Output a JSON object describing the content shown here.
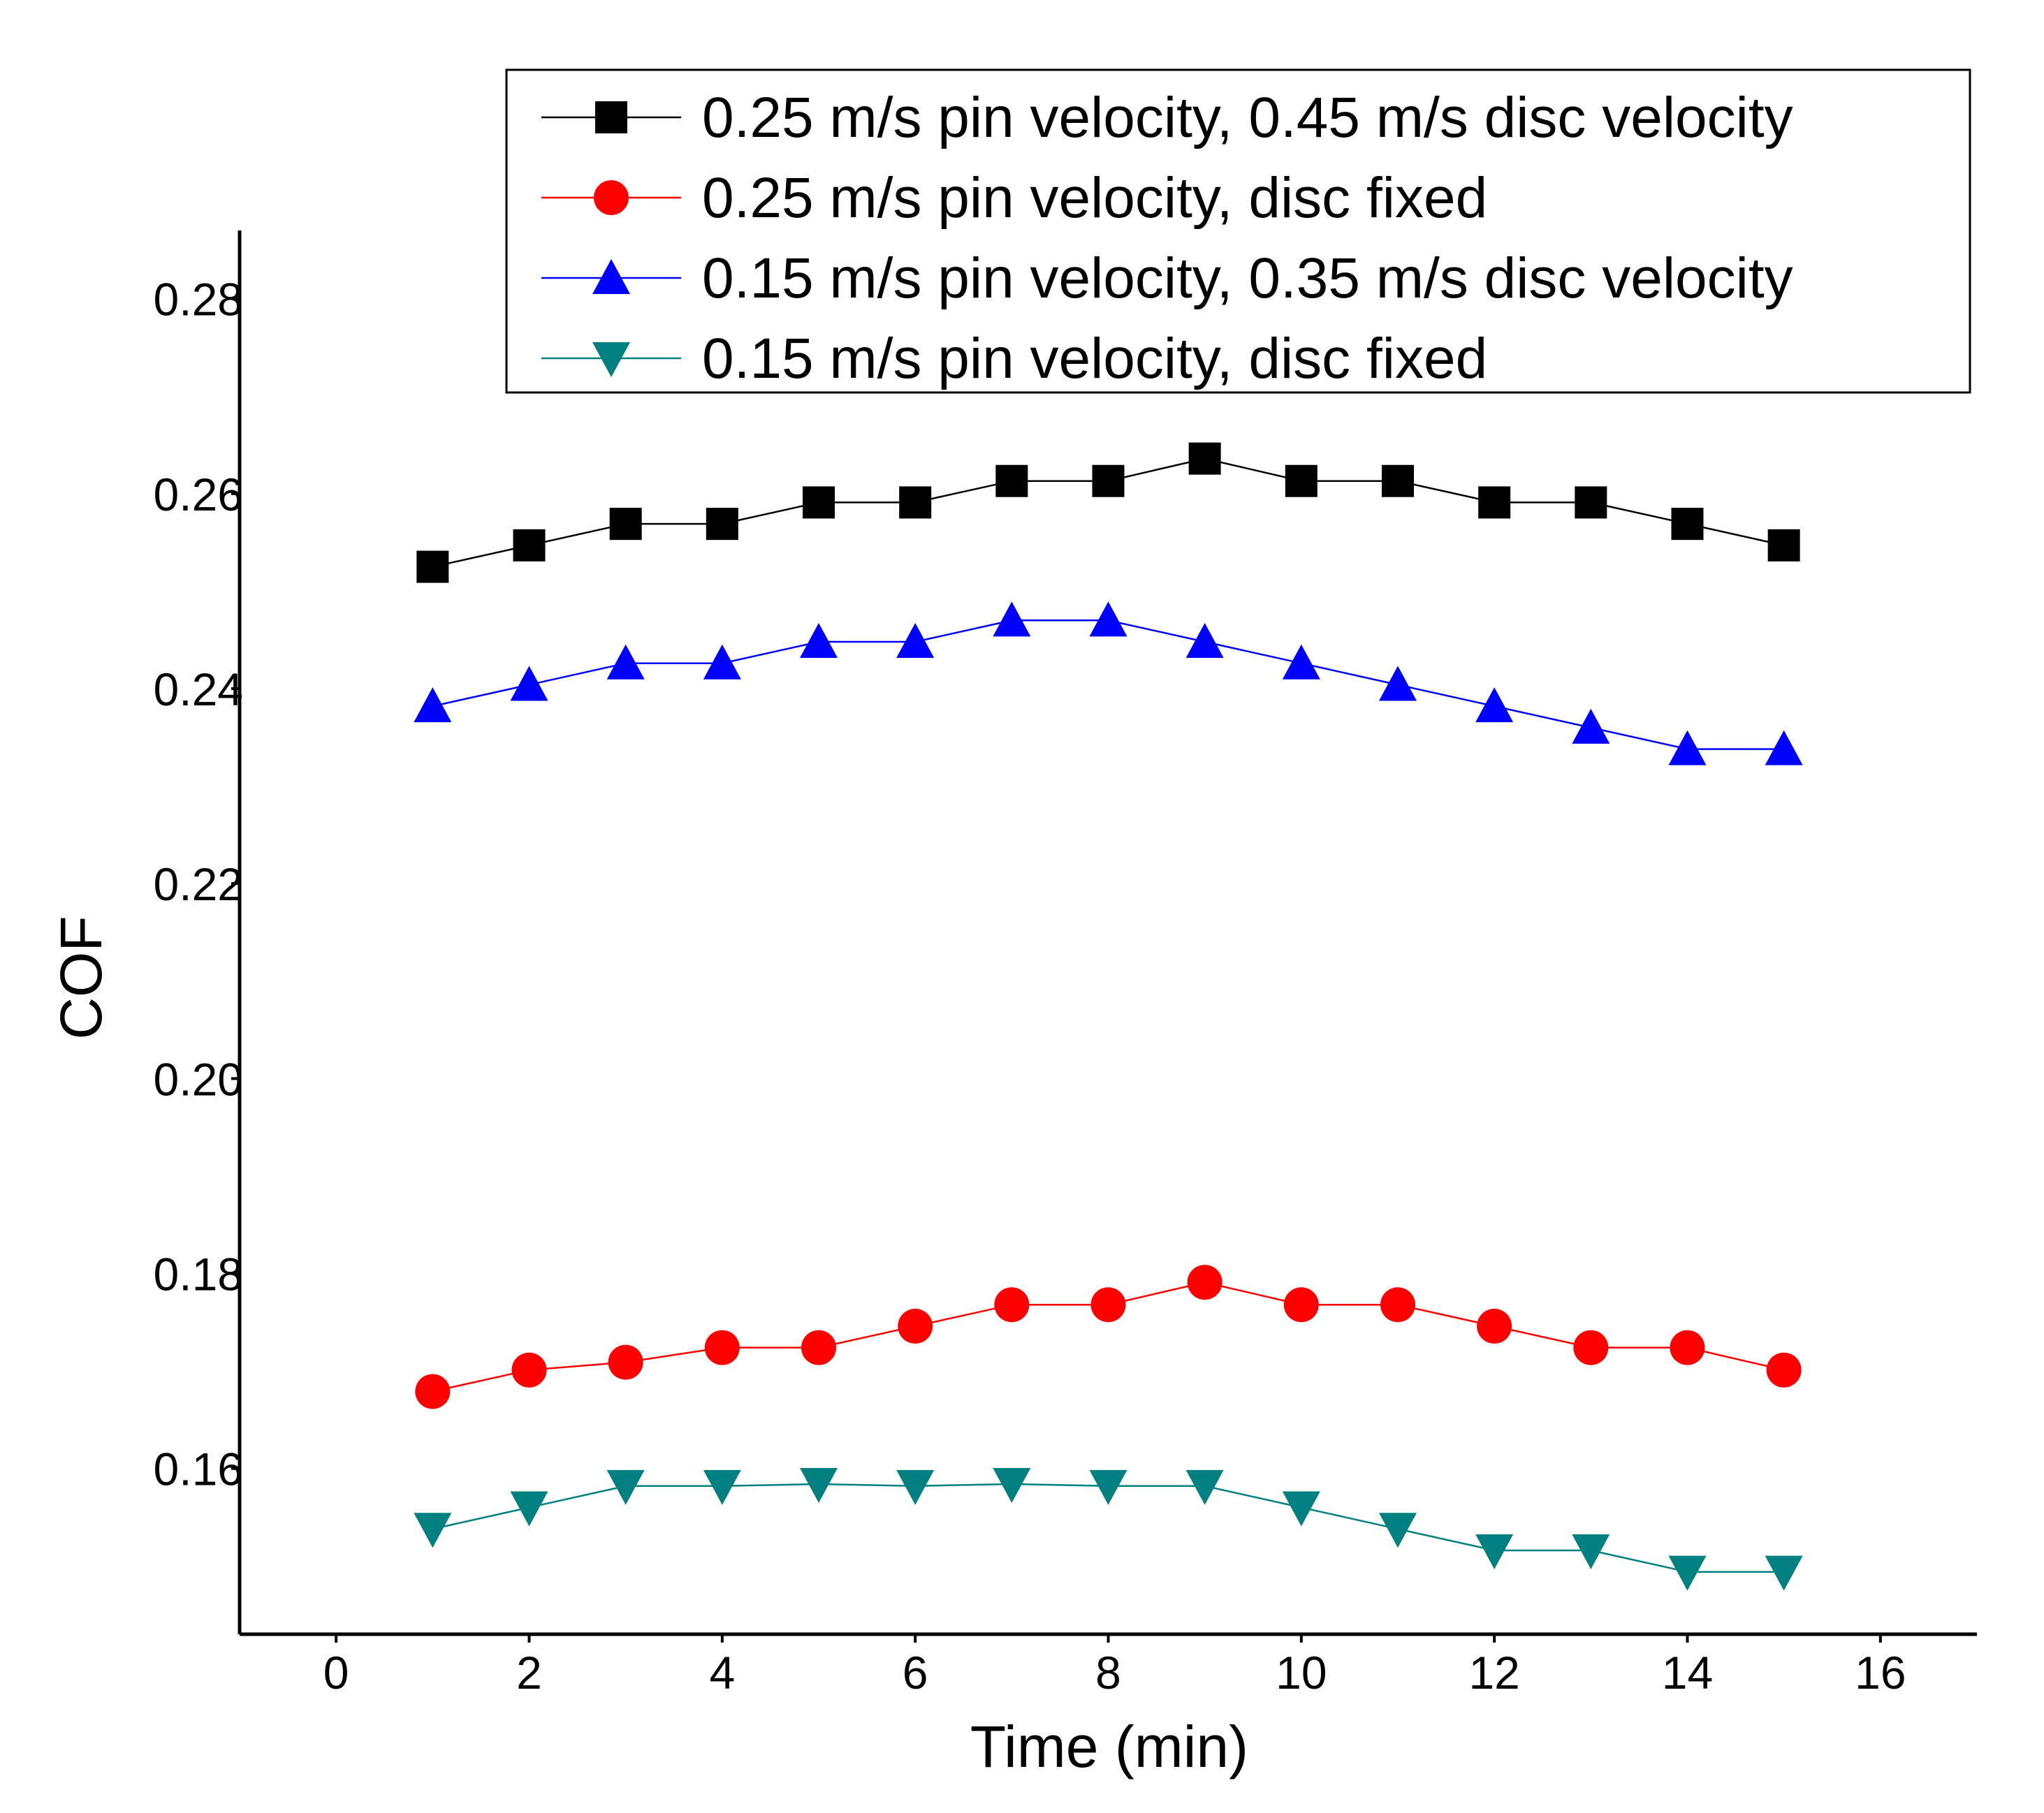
{
  "chart_data": {
    "type": "line",
    "title": "",
    "xlabel": "Time (min)",
    "ylabel": "COF",
    "xlim": [
      -1,
      17
    ],
    "ylim": [
      0.143,
      0.287
    ],
    "xticks": [
      0,
      2,
      4,
      6,
      8,
      10,
      12,
      14,
      16
    ],
    "xtick_labels": [
      "0",
      "2",
      "4",
      "6",
      "8",
      "10",
      "12",
      "14",
      "16"
    ],
    "yticks": [
      0.16,
      0.18,
      0.2,
      0.22,
      0.24,
      0.26,
      0.28
    ],
    "ytick_labels": [
      "0.16",
      "0.18",
      "0.20",
      "0.22",
      "0.24",
      "0.26",
      "0.28"
    ],
    "grid": false,
    "legend_position": "top-right",
    "x": [
      1,
      2,
      3,
      4,
      5,
      6,
      7,
      8,
      9,
      10,
      11,
      12,
      13,
      14,
      15
    ],
    "series": [
      {
        "name": "0.25 m/s pin velocity, 0.45 m/s disc velocity",
        "marker": "square",
        "color": "#000000",
        "values": [
          0.2525,
          0.2547,
          0.2569,
          0.2569,
          0.2591,
          0.2591,
          0.2613,
          0.2613,
          0.2636,
          0.2613,
          0.2613,
          0.2591,
          0.2591,
          0.2569,
          0.2547
        ]
      },
      {
        "name": "0.25 m/s pin velocity, disc fixed",
        "marker": "circle",
        "color": "#ff0000",
        "values": [
          0.1679,
          0.1701,
          0.1709,
          0.1724,
          0.1724,
          0.1746,
          0.1768,
          0.1768,
          0.1791,
          0.1768,
          0.1768,
          0.1746,
          0.1724,
          0.1724,
          0.1701
        ]
      },
      {
        "name": "0.15 m/s pin velocity, 0.35 m/s disc velocity",
        "marker": "triangle-up",
        "color": "#0000ff",
        "values": [
          0.2382,
          0.2404,
          0.2426,
          0.2426,
          0.2448,
          0.2448,
          0.247,
          0.247,
          0.2448,
          0.2426,
          0.2404,
          0.2382,
          0.236,
          0.2338,
          0.2338
        ]
      },
      {
        "name": "0.15 m/s pin velocity, disc fixed",
        "marker": "triangle-down",
        "color": "#008080",
        "values": [
          0.1538,
          0.156,
          0.1582,
          0.1582,
          0.1584,
          0.1582,
          0.1584,
          0.1582,
          0.1582,
          0.156,
          0.1538,
          0.1516,
          0.1516,
          0.1494,
          0.1494
        ]
      }
    ]
  }
}
